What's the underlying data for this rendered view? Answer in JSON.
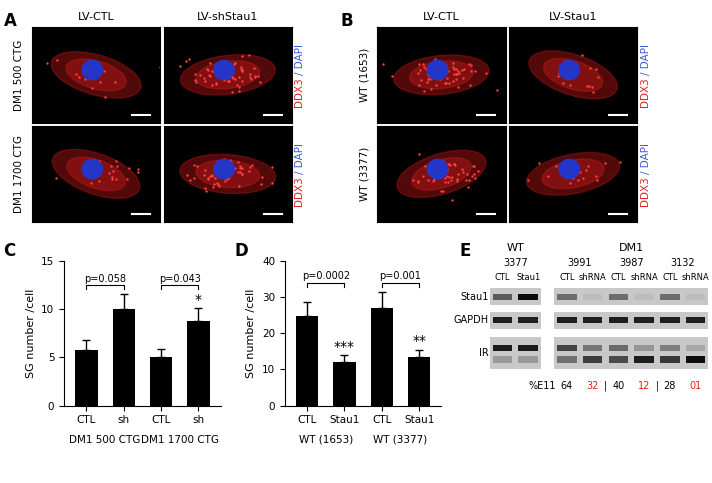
{
  "figure_panels": {
    "A": {
      "panel": "A",
      "columns": [
        "LV-CTL",
        "LV-shStau1"
      ],
      "rows": [
        "DM1 500 CTG",
        "DM1 1700 CTG"
      ],
      "stain": [
        "DDX3",
        "/ DAPI"
      ]
    },
    "B": {
      "panel": "B",
      "columns": [
        "LV-CTL",
        "LV-Stau1"
      ],
      "rows": [
        "WT (1653)",
        "WT (3377)"
      ],
      "stain": [
        "DDX3",
        "/ DAPI"
      ]
    },
    "E": {
      "panel": "E",
      "rows": [
        "Stau1",
        "GAPDH",
        "IR"
      ],
      "groups": [
        {
          "label": "WT",
          "samples": [
            {
              "id": "3377",
              "lanes": [
                "CTL",
                "Stau1"
              ]
            }
          ]
        },
        {
          "label": "DM1",
          "samples": [
            {
              "id": "3991",
              "lanes": [
                "CTL",
                "shRNA"
              ]
            },
            {
              "id": "3987",
              "lanes": [
                "CTL",
                "shRNA"
              ]
            },
            {
              "id": "3132",
              "lanes": [
                "CTL",
                "shRNA"
              ]
            }
          ],
          "quant": {
            "label": "%E11",
            "separator": "|",
            "values": [
              64,
              32,
              40,
              12,
              28,
              1
            ],
            "value_labels": [
              "64",
              "32",
              "40",
              "12",
              "28",
              "01"
            ]
          }
        }
      ]
    }
  },
  "chart_data": [
    {
      "panel": "C",
      "type": "bar",
      "categories": [
        "CTL",
        "sh",
        "CTL",
        "sh"
      ],
      "values": [
        5.8,
        10.0,
        5.0,
        8.8
      ],
      "errors": [
        1.0,
        1.6,
        0.9,
        1.3
      ],
      "significance": [
        null,
        null,
        null,
        "*"
      ],
      "groups": [
        {
          "label": "DM1 500 CTG",
          "p": "p=0.058"
        },
        {
          "label": "DM1 1700 CTG",
          "p": "p=0.043"
        }
      ],
      "y_label": "SG number /cell",
      "ylim": [
        0,
        15
      ],
      "yticks": [
        0,
        5,
        10,
        15
      ],
      "color": "#000000"
    },
    {
      "panel": "D",
      "type": "bar",
      "categories": [
        "CTL",
        "Stau1",
        "CTL",
        "Stau1"
      ],
      "values": [
        24.7,
        12.0,
        27.0,
        13.5
      ],
      "errors": [
        4.0,
        2.0,
        4.5,
        2.0
      ],
      "significance": [
        null,
        "***",
        null,
        "**"
      ],
      "groups": [
        {
          "label": "WT (1653)",
          "p": "p=0.0002"
        },
        {
          "label": "WT (3377)",
          "p": "p=0.001"
        }
      ],
      "y_label": "SG number /cell",
      "ylim": [
        0,
        40
      ],
      "yticks": [
        0,
        10,
        20,
        30,
        40
      ],
      "color": "#000000"
    }
  ]
}
